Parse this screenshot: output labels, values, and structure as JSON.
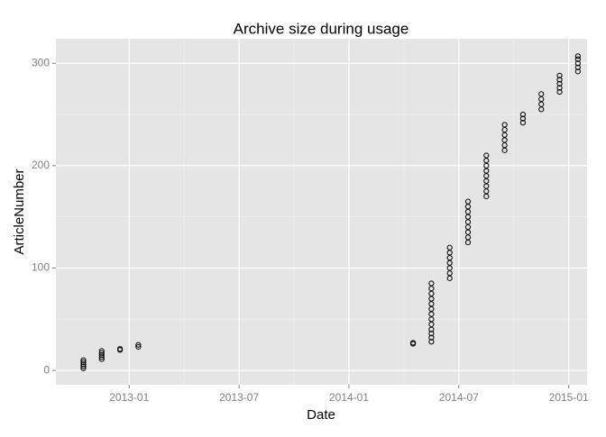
{
  "chart_data": {
    "type": "scatter",
    "title": "Archive size during usage",
    "x_label": "Date",
    "y_label": "ArticleNumber",
    "x": [
      "2012-10",
      "2012-10",
      "2012-10",
      "2012-10",
      "2012-10",
      "2012-11",
      "2012-11",
      "2012-11",
      "2012-11",
      "2012-11",
      "2012-12",
      "2012-12",
      "2013-01",
      "2013-01",
      "2014-04",
      "2014-04",
      "2014-05",
      "2014-05",
      "2014-05",
      "2014-05",
      "2014-05",
      "2014-05",
      "2014-05",
      "2014-05",
      "2014-05",
      "2014-05",
      "2014-05",
      "2014-05",
      "2014-05",
      "2014-06",
      "2014-06",
      "2014-06",
      "2014-06",
      "2014-06",
      "2014-06",
      "2014-06",
      "2014-07",
      "2014-07",
      "2014-07",
      "2014-07",
      "2014-07",
      "2014-07",
      "2014-07",
      "2014-07",
      "2014-07",
      "2014-08",
      "2014-08",
      "2014-08",
      "2014-08",
      "2014-08",
      "2014-08",
      "2014-08",
      "2014-08",
      "2014-08",
      "2014-09",
      "2014-09",
      "2014-09",
      "2014-09",
      "2014-09",
      "2014-09",
      "2014-10",
      "2014-10",
      "2014-10",
      "2014-11",
      "2014-11",
      "2014-11",
      "2014-11",
      "2014-12",
      "2014-12",
      "2014-12",
      "2014-12",
      "2014-12",
      "2015-01",
      "2015-01",
      "2015-01",
      "2015-01",
      "2015-01"
    ],
    "values": [
      2,
      4,
      6,
      8,
      10,
      11,
      13,
      15,
      17,
      19,
      20,
      21,
      23,
      25,
      26,
      27,
      28,
      32,
      36,
      40,
      45,
      50,
      55,
      60,
      65,
      70,
      75,
      80,
      85,
      90,
      95,
      100,
      105,
      110,
      115,
      120,
      125,
      130,
      135,
      140,
      145,
      150,
      155,
      160,
      165,
      170,
      175,
      180,
      185,
      190,
      195,
      200,
      205,
      210,
      215,
      220,
      225,
      230,
      235,
      240,
      242,
      246,
      250,
      255,
      260,
      265,
      270,
      272,
      276,
      280,
      284,
      288,
      292,
      296,
      300,
      304,
      307
    ],
    "color": "#000000",
    "xlim": [
      "2012-09",
      "2015-02"
    ],
    "xticks": [
      "2013-01",
      "2013-07",
      "2014-01",
      "2014-07",
      "2015-01"
    ],
    "ylim": [
      -14,
      324
    ],
    "yticks": [
      0,
      100,
      200,
      300
    ],
    "grid": true
  }
}
